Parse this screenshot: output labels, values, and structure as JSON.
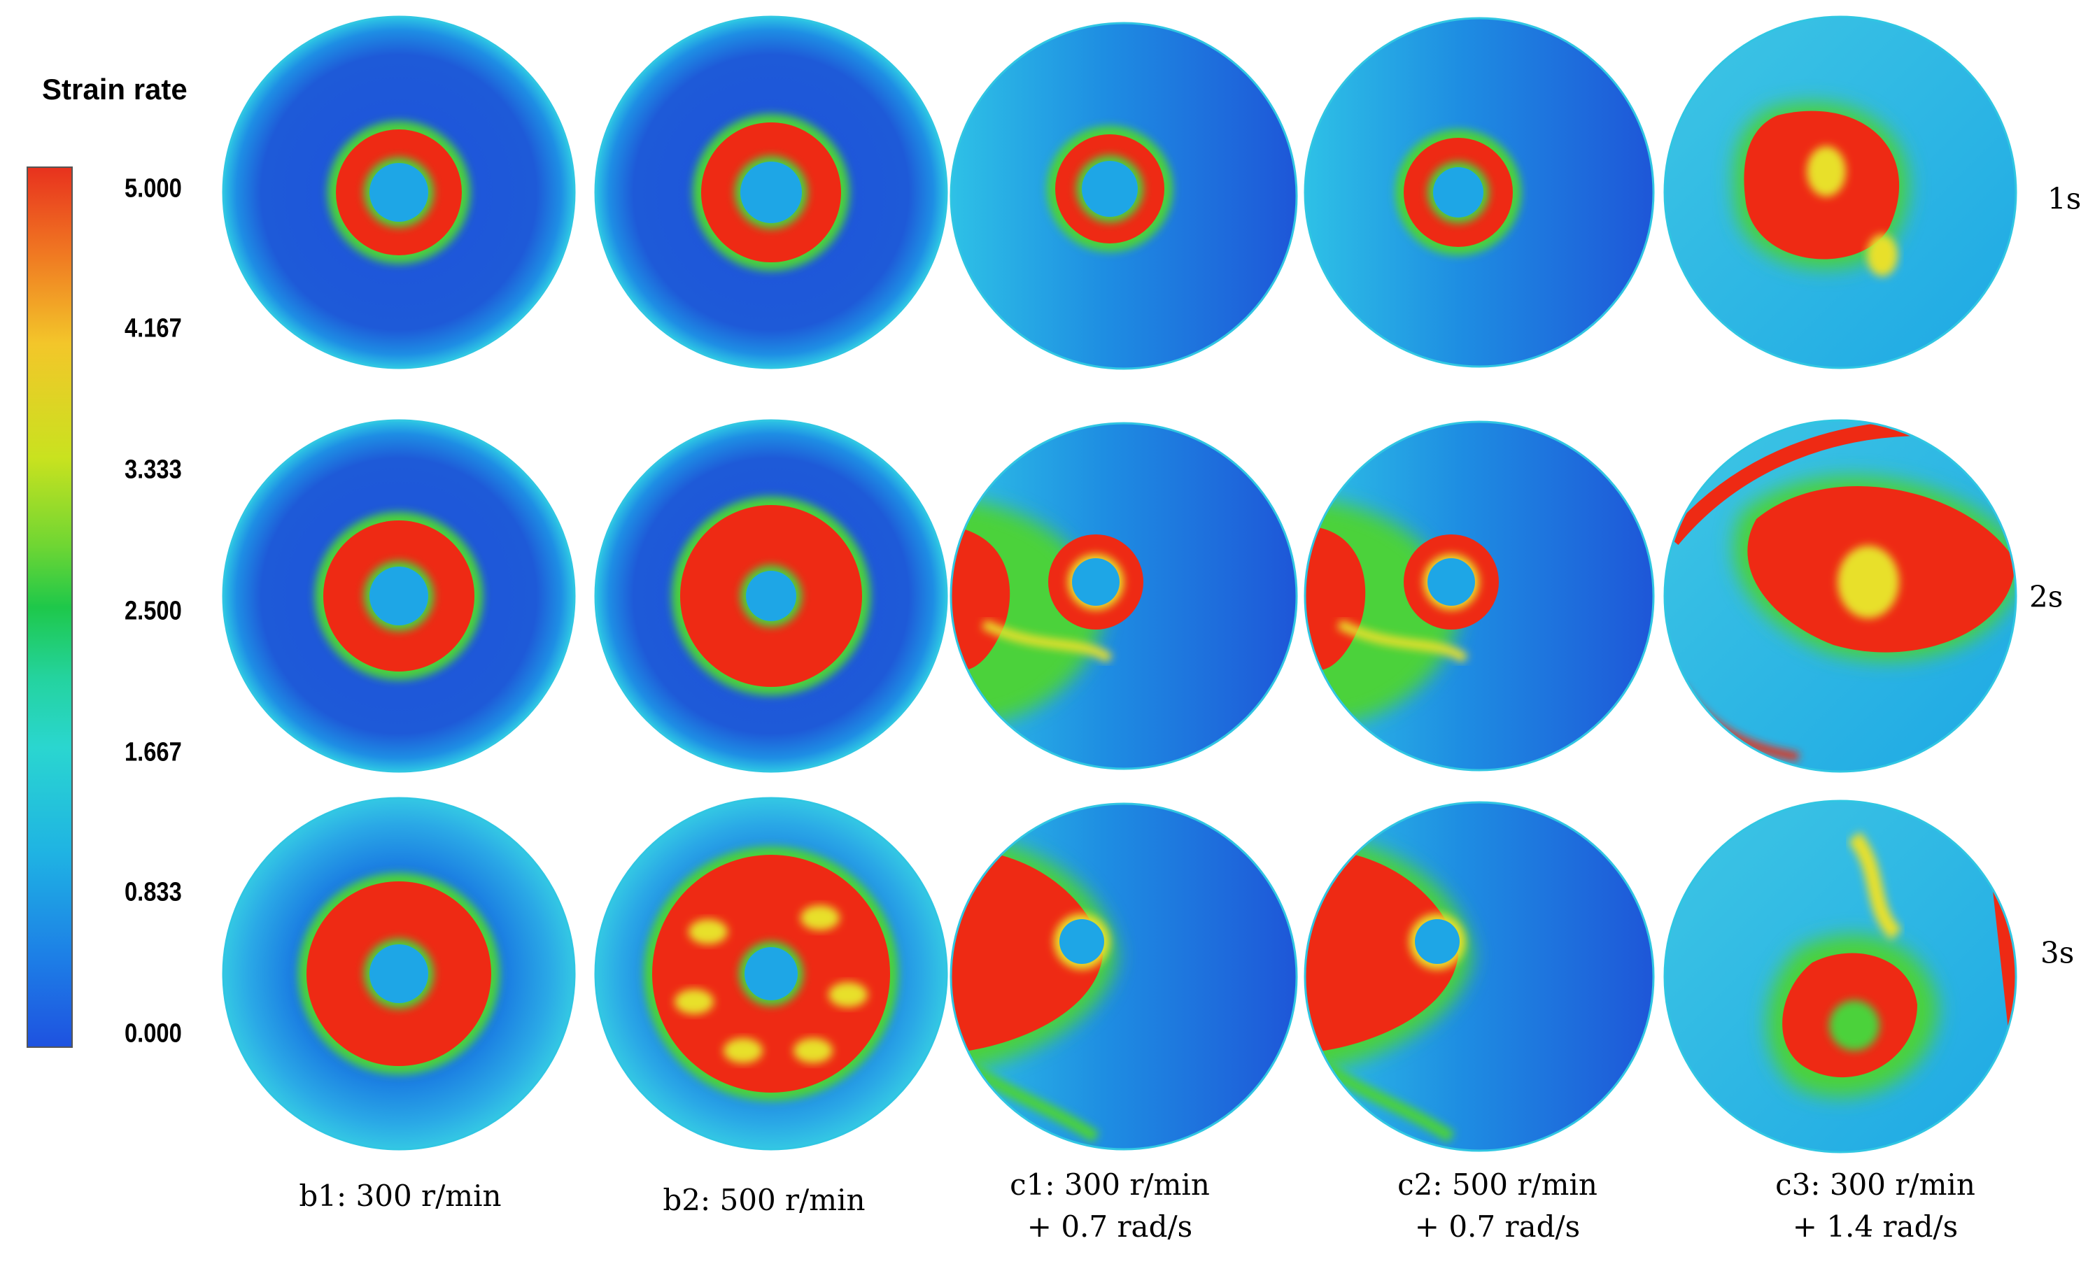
{
  "legend": {
    "title": "Strain rate",
    "ticks": [
      "5.000",
      "4.167",
      "3.333",
      "2.500",
      "1.667",
      "0.833",
      "0.000"
    ],
    "colors": [
      "#e8321e",
      "#f3c62a",
      "#6fd633",
      "#1ec84a",
      "#2ad6d0",
      "#1fb3e3",
      "#1e52e0"
    ]
  },
  "times": [
    "1s",
    "2s",
    "3s"
  ],
  "columns": [
    {
      "line1": "b1: 300 r/min",
      "line2": ""
    },
    {
      "line1": "b2: 500 r/min",
      "line2": ""
    },
    {
      "line1": "c1: 300 r/min",
      "line2": "+ 0.7 rad/s"
    },
    {
      "line1": "c2: 500 r/min",
      "line2": "+ 0.7 rad/s"
    },
    {
      "line1": "c3: 300 r/min",
      "line2": "+ 1.4 rad/s"
    }
  ],
  "palette": {
    "background_blue": "#1e5ad8",
    "rim_cyan": "#2ec5e6",
    "mid_blue": "#1b8be3",
    "high_red": "#ee2a14",
    "green": "#4cd23a",
    "yellow": "#e8e02a"
  }
}
